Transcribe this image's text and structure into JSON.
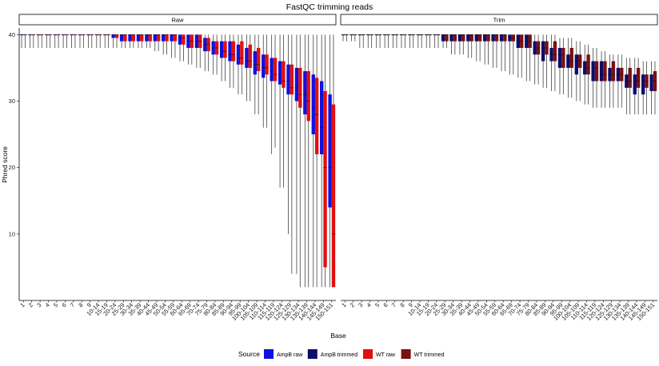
{
  "chart_data": {
    "type": "boxplot",
    "title": "FastQC trimming reads",
    "xlabel": "Base",
    "ylabel": "Phred score",
    "ylim": [
      0,
      41
    ],
    "y_ticks": [
      10,
      20,
      30,
      40
    ],
    "grid": false,
    "legend": {
      "title": "Source",
      "position": "bottom",
      "entries": [
        {
          "name": "AmpB raw",
          "color": "#1010e0"
        },
        {
          "name": "AmpB trimmed",
          "color": "#0d0d6e"
        },
        {
          "name": "WT raw",
          "color": "#e01010"
        },
        {
          "name": "WT trimmed",
          "color": "#7a1010"
        }
      ]
    },
    "categories": [
      "1",
      "2",
      "3",
      "4",
      "5",
      "6",
      "7",
      "8",
      "9",
      "10-14",
      "15-19",
      "20-24",
      "25-29",
      "30-34",
      "35-39",
      "40-44",
      "45-49",
      "50-54",
      "55-59",
      "60-64",
      "65-69",
      "70-74",
      "75-79",
      "80-84",
      "85-89",
      "90-94",
      "95-99",
      "100-104",
      "105-109",
      "110-114",
      "115-119",
      "120-124",
      "125-129",
      "130-134",
      "135-139",
      "140-144",
      "145-149",
      "150-151"
    ],
    "panels": [
      {
        "label": "Raw",
        "series": [
          {
            "source": "AmpB raw",
            "color": "#1010e0",
            "q1": [
              40,
              40,
              40,
              40,
              40,
              40,
              40,
              40,
              40,
              40,
              40,
              39.5,
              39,
              39,
              39,
              39,
              39,
              39,
              39,
              38.5,
              38,
              38,
              37.5,
              37,
              36.5,
              36,
              35.5,
              35,
              34,
              33.5,
              33,
              32.5,
              31,
              30,
              28,
              25,
              22,
              14
            ],
            "q3": [
              40,
              40,
              40,
              40,
              40,
              40,
              40,
              40,
              40,
              40,
              40,
              40,
              40,
              40,
              40,
              40,
              40,
              40,
              40,
              40,
              40,
              40,
              39.5,
              39,
              39,
              39,
              38.5,
              38,
              37.5,
              37,
              36.5,
              36,
              35.5,
              35,
              34.5,
              34,
              33,
              31
            ],
            "lo": [
              38,
              38,
              38,
              38,
              38,
              38,
              38,
              38,
              38,
              38,
              38,
              38,
              38,
              38,
              38,
              38,
              37.5,
              37,
              36.5,
              36,
              35.5,
              35,
              34.5,
              34,
              33,
              32,
              31,
              30,
              28,
              26,
              22,
              17,
              10,
              4,
              2,
              2,
              2,
              2
            ],
            "hi": [
              40,
              40,
              40,
              40,
              40,
              40,
              40,
              40,
              40,
              40,
              40,
              40,
              40,
              40,
              40,
              40,
              40,
              40,
              40,
              40,
              40,
              40,
              40,
              40,
              40,
              40,
              40,
              40,
              40,
              40,
              40,
              40,
              40,
              40,
              40,
              40,
              40,
              40
            ],
            "median": [
              40,
              40,
              40,
              40,
              40,
              40,
              40,
              40,
              40,
              40,
              40,
              40,
              40,
              40,
              40,
              40,
              40,
              40,
              40,
              39.5,
              39,
              39,
              38.5,
              38,
              37.5,
              37,
              36.5,
              36,
              35.5,
              35,
              34.5,
              34,
              33,
              32,
              31,
              29,
              26,
              20
            ]
          },
          {
            "source": "WT raw",
            "color": "#e01010",
            "q1": [
              40,
              40,
              40,
              40,
              40,
              40,
              40,
              40,
              40,
              40,
              40,
              39.5,
              39,
              39,
              39,
              39,
              39,
              39,
              39,
              38.5,
              38,
              38,
              37.5,
              37,
              36.5,
              36,
              35.5,
              35,
              34.5,
              34,
              33,
              32,
              31,
              29,
              27,
              22,
              5,
              2
            ],
            "q3": [
              40,
              40,
              40,
              40,
              40,
              40,
              40,
              40,
              40,
              40,
              40,
              40,
              40,
              40,
              40,
              40,
              40,
              40,
              40,
              40,
              40,
              40,
              39.5,
              39,
              39,
              39,
              39,
              38.5,
              38,
              37,
              36.5,
              36,
              35.5,
              35,
              34.5,
              33.5,
              31.5,
              29.5
            ],
            "lo": [
              38,
              38,
              38,
              38,
              38,
              38,
              38,
              38,
              38,
              38,
              38,
              38,
              38,
              38,
              38,
              38,
              37.5,
              37,
              36.5,
              36,
              35.5,
              35,
              34.5,
              34,
              33,
              32,
              31,
              30,
              28,
              26,
              23,
              17,
              4,
              2,
              2,
              2,
              2,
              2
            ],
            "hi": [
              40,
              40,
              40,
              40,
              40,
              40,
              40,
              40,
              40,
              40,
              40,
              40,
              40,
              40,
              40,
              40,
              40,
              40,
              40,
              40,
              40,
              40,
              40,
              40,
              40,
              40,
              40,
              40,
              40,
              40,
              40,
              40,
              40,
              40,
              40,
              40,
              40,
              40
            ],
            "median": [
              40,
              40,
              40,
              40,
              40,
              40,
              40,
              40,
              40,
              40,
              40,
              40,
              40,
              40,
              40,
              40,
              40,
              40,
              40,
              39.5,
              39,
              39,
              38.5,
              38,
              37.5,
              37,
              36.5,
              36,
              35.5,
              35,
              34,
              33,
              32,
              31,
              30,
              28,
              20,
              10
            ]
          }
        ]
      },
      {
        "label": "Trim",
        "series": [
          {
            "source": "AmpB trimmed",
            "color": "#0d0d6e",
            "q1": [
              40,
              40,
              40,
              40,
              40,
              40,
              40,
              40,
              40,
              40,
              40,
              40,
              39,
              39,
              39,
              39,
              39,
              39,
              39,
              39,
              39,
              38,
              38,
              37,
              36,
              36,
              35,
              35,
              34,
              34,
              33,
              33,
              33,
              33,
              32,
              31,
              31,
              31.5
            ],
            "q3": [
              40,
              40,
              40,
              40,
              40,
              40,
              40,
              40,
              40,
              40,
              40,
              40,
              40,
              40,
              40,
              40,
              40,
              40,
              40,
              40,
              40,
              40,
              40,
              39,
              39,
              38,
              38,
              37,
              37,
              36,
              36,
              36,
              35,
              35,
              34,
              34,
              34,
              34
            ],
            "lo": [
              39,
              39,
              38,
              38,
              38,
              38,
              38,
              38,
              38,
              38,
              38,
              38,
              38,
              37,
              37,
              36.5,
              36,
              35.5,
              35,
              34.5,
              34,
              33.5,
              33,
              32.5,
              32,
              31.5,
              31,
              30.5,
              30,
              29.5,
              29,
              29,
              29,
              29,
              28,
              28,
              28,
              28
            ],
            "hi": [
              40,
              40,
              40,
              40,
              40,
              40,
              40,
              40,
              40,
              40,
              40,
              40,
              40,
              40,
              40,
              40,
              40,
              40,
              40,
              40,
              40,
              40,
              40,
              40,
              40,
              40,
              39.5,
              39.5,
              39,
              38.5,
              38,
              37.5,
              37,
              37,
              36.5,
              36.5,
              36,
              36
            ],
            "median": [
              40,
              40,
              40,
              40,
              40,
              40,
              40,
              40,
              40,
              40,
              40,
              40,
              40,
              40,
              40,
              40,
              40,
              40,
              40,
              40,
              39.5,
              39,
              39,
              38,
              38,
              37,
              37,
              36,
              36,
              35,
              35,
              34,
              34,
              34,
              33,
              33,
              33,
              33
            ]
          },
          {
            "source": "WT trimmed",
            "color": "#7a1010",
            "q1": [
              40,
              40,
              40,
              40,
              40,
              40,
              40,
              40,
              40,
              40,
              40,
              40,
              39,
              39,
              39,
              39,
              39,
              39,
              39,
              39,
              39,
              38,
              38,
              37,
              37,
              36,
              35,
              35,
              35,
              34,
              33,
              33,
              33,
              33,
              32,
              32,
              32,
              31.5
            ],
            "q3": [
              40,
              40,
              40,
              40,
              40,
              40,
              40,
              40,
              40,
              40,
              40,
              40,
              40,
              40,
              40,
              40,
              40,
              40,
              40,
              40,
              40,
              40,
              40,
              39,
              39,
              39,
              38,
              38,
              37,
              37,
              36,
              36,
              36,
              35,
              35,
              35,
              34,
              34.5
            ],
            "lo": [
              39,
              39,
              38,
              38,
              38,
              38,
              38,
              38,
              38,
              38,
              38,
              38,
              38,
              37,
              37,
              36.5,
              36,
              35.5,
              35,
              34.5,
              34,
              33.5,
              33,
              32.5,
              32,
              31.5,
              31,
              30.5,
              30,
              29.5,
              29,
              29,
              29,
              29,
              28,
              28,
              28,
              28
            ],
            "hi": [
              40,
              40,
              40,
              40,
              40,
              40,
              40,
              40,
              40,
              40,
              40,
              40,
              40,
              40,
              40,
              40,
              40,
              40,
              40,
              40,
              40,
              40,
              40,
              40,
              40,
              40,
              39.5,
              39.5,
              39,
              38.5,
              38,
              37.5,
              37,
              37,
              36.5,
              36.5,
              36,
              36
            ],
            "median": [
              40,
              40,
              40,
              40,
              40,
              40,
              40,
              40,
              40,
              40,
              40,
              40,
              40,
              40,
              40,
              40,
              40,
              40,
              40,
              40,
              39.5,
              39,
              39,
              38,
              38,
              37,
              37,
              36,
              36,
              35,
              35,
              34,
              34,
              34,
              33,
              33,
              33,
              33
            ]
          }
        ]
      }
    ]
  }
}
